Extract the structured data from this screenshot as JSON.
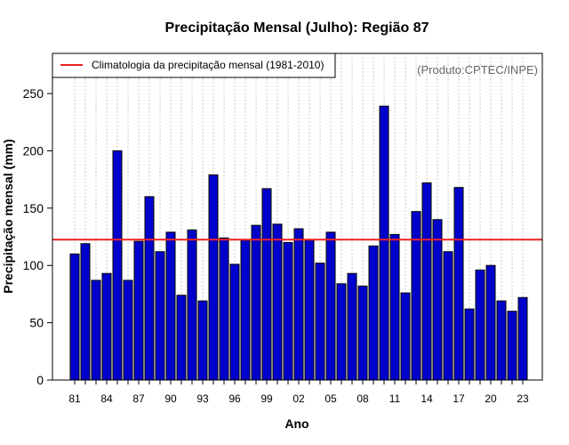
{
  "chart_data": {
    "type": "bar",
    "title": "Precipitação Mensal (Julho): Região 87",
    "xlabel": "Ano",
    "ylabel": "Precipitação mensal (mm)",
    "credit": "(Produto:CPTEC/INPE)",
    "ylim": [
      0,
      285
    ],
    "yticks": [
      0,
      50,
      100,
      150,
      200,
      250
    ],
    "xtick_labels": [
      "81",
      "84",
      "87",
      "90",
      "93",
      "96",
      "99",
      "02",
      "05",
      "08",
      "11",
      "14",
      "17",
      "20",
      "23"
    ],
    "xtick_every": 3,
    "grid": "vertical-dotted",
    "legend_position": "top-left",
    "categories": [
      "1981",
      "1982",
      "1983",
      "1984",
      "1985",
      "1986",
      "1987",
      "1988",
      "1989",
      "1990",
      "1991",
      "1992",
      "1993",
      "1994",
      "1995",
      "1996",
      "1997",
      "1998",
      "1999",
      "2000",
      "2001",
      "2002",
      "2003",
      "2004",
      "2005",
      "2006",
      "2007",
      "2008",
      "2009",
      "2010",
      "2011",
      "2012",
      "2013",
      "2014",
      "2015",
      "2016",
      "2017",
      "2018",
      "2019",
      "2020",
      "2021",
      "2022",
      "2023"
    ],
    "values": [
      110,
      119,
      87,
      93,
      200,
      87,
      121,
      160,
      112,
      129,
      74,
      131,
      69,
      179,
      124,
      101,
      122,
      135,
      167,
      136,
      120,
      132,
      122,
      102,
      129,
      84,
      93,
      82,
      117,
      239,
      127,
      76,
      147,
      172,
      140,
      112,
      168,
      62,
      96,
      100,
      69,
      60,
      72
    ],
    "bar_color": "#0000cc",
    "climatology": {
      "label": "Climatologia da precipitação mensal (1981-2010)",
      "value": 122.5,
      "color": "#ee2222"
    }
  }
}
